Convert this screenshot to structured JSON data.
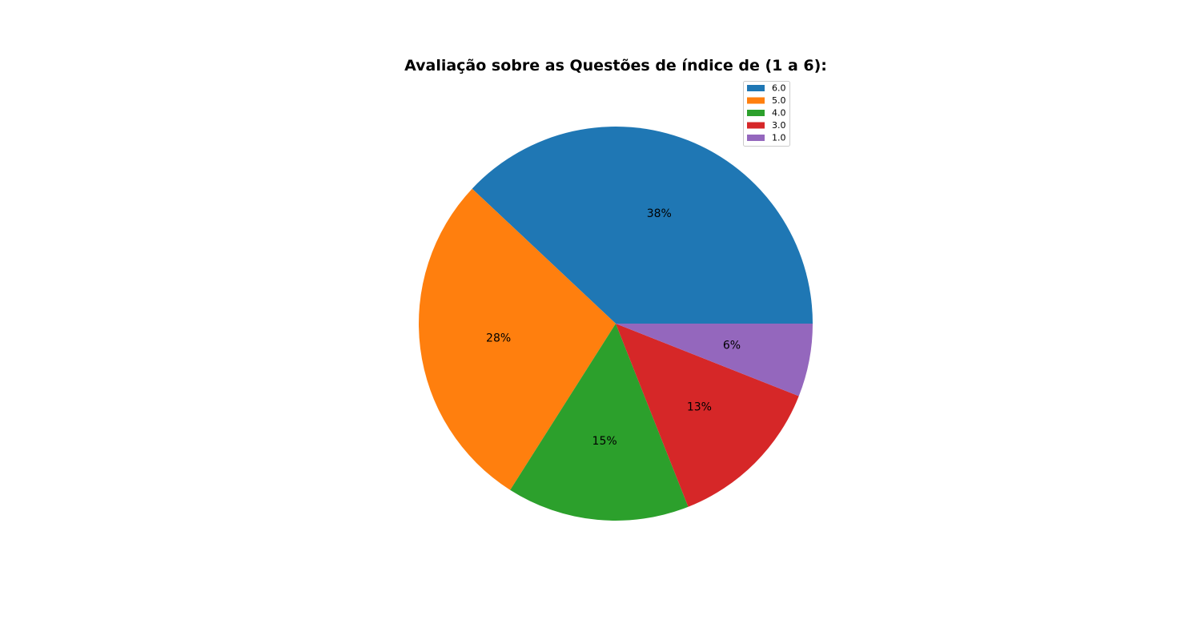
{
  "chart_data": {
    "type": "pie",
    "title": "Avaliação sobre as Questões de índice de (1 a 6):",
    "slices": [
      {
        "label": "6.0",
        "value": 38,
        "pct_label": "38%",
        "color": "#1f77b4"
      },
      {
        "label": "5.0",
        "value": 28,
        "pct_label": "28%",
        "color": "#ff7f0e"
      },
      {
        "label": "4.0",
        "value": 15,
        "pct_label": "15%",
        "color": "#2ca02c"
      },
      {
        "label": "3.0",
        "value": 13,
        "pct_label": "13%",
        "color": "#d62728"
      },
      {
        "label": "1.0",
        "value": 6,
        "pct_label": "6%",
        "color": "#9467bd"
      }
    ],
    "legend_placement": "upper-right"
  }
}
